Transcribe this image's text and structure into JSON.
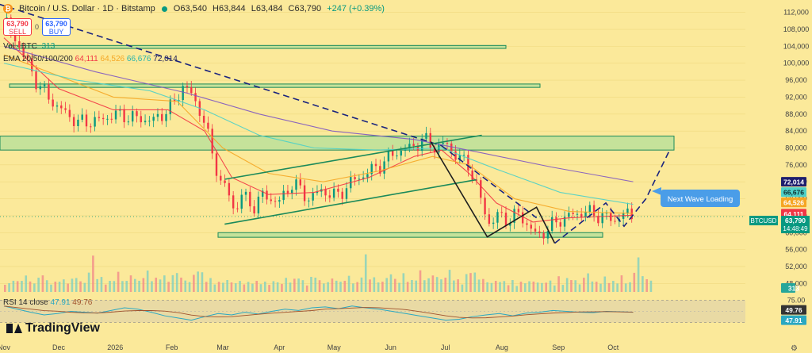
{
  "header": {
    "logo_glyph": "₿",
    "title": "Bitcoin / U.S. Dollar · 1D · Bitstamp",
    "status_dot_color": "#089981",
    "open": "O63,540",
    "high": "H63,844",
    "low": "L63,484",
    "close": "C63,790",
    "change": "+247 (+0.39%)"
  },
  "trade": {
    "sell_price": "63,790",
    "sell_label": "SELL",
    "buy_price": "63,790",
    "buy_label": "BUY",
    "spread": "0"
  },
  "indicators": {
    "vol_label": "Vol · BTC",
    "vol_value": "313",
    "ema_label": "EMA 20/50/100/200",
    "ema20": "64,111",
    "ema50": "64,526",
    "ema100": "66,676",
    "ema200": "72,014",
    "rsi_label": "RSI 14 close",
    "rsi_value": "47.91",
    "rsi_ma": "49.76"
  },
  "annotation": {
    "text": "Next Wave Loading"
  },
  "brand": "TradingView",
  "colors": {
    "background": "#fbe99a",
    "up": "#089981",
    "down": "#f23645",
    "ema20": "#f23645",
    "ema50": "#f5a623",
    "ema100": "#4dd0c8",
    "ema200": "#7e57c2",
    "zone_fill": "#b8e09a",
    "zone_stroke": "#1b8a5a",
    "projection": "#1a237e",
    "callout": "#4a9de8"
  },
  "chart_data": {
    "type": "candlestick",
    "symbol": "BTCUSD",
    "last_price": "63,790",
    "countdown": "14:48:49",
    "y_axis_ticks": [
      "112,000",
      "108,000",
      "104,000",
      "100,000",
      "96,000",
      "92,000",
      "88,000",
      "84,000",
      "80,000",
      "76,000",
      "72,000",
      "68,000",
      "64,000",
      "60,000",
      "56,000",
      "52,000",
      "48,000"
    ],
    "ylim": [
      46000,
      114000
    ],
    "x_axis_ticks": [
      "Nov",
      "Dec",
      "2026",
      "Feb",
      "Mar",
      "Apr",
      "May",
      "Jun",
      "Jul",
      "Aug",
      "Sep",
      "Oct"
    ],
    "price_labels": {
      "ema200": "72,014",
      "ema100": "66,676",
      "ema50": "64,526",
      "ema20": "64,111",
      "symbol": "BTCUSD",
      "price": "63,790",
      "countdown": "14:48:49"
    },
    "price_path": [
      [
        0,
        110000
      ],
      [
        8,
        104000
      ],
      [
        18,
        95000
      ],
      [
        28,
        90000
      ],
      [
        40,
        86000
      ],
      [
        52,
        86500
      ],
      [
        60,
        88000
      ],
      [
        72,
        87000
      ],
      [
        82,
        86500
      ],
      [
        92,
        90000
      ],
      [
        98,
        95000
      ],
      [
        103,
        92000
      ],
      [
        108,
        88000
      ],
      [
        113,
        80000
      ],
      [
        118,
        72000
      ],
      [
        122,
        70000
      ],
      [
        126,
        65000
      ],
      [
        130,
        69000
      ],
      [
        136,
        66000
      ],
      [
        142,
        69000
      ],
      [
        150,
        67000
      ],
      [
        158,
        72000
      ],
      [
        166,
        68000
      ],
      [
        174,
        70000
      ],
      [
        182,
        68500
      ],
      [
        190,
        72000
      ],
      [
        198,
        74000
      ],
      [
        206,
        76000
      ],
      [
        214,
        79000
      ],
      [
        222,
        80000
      ],
      [
        230,
        82000
      ],
      [
        236,
        80000
      ],
      [
        242,
        81000
      ],
      [
        248,
        78000
      ],
      [
        254,
        76000
      ],
      [
        258,
        72000
      ],
      [
        262,
        66000
      ],
      [
        266,
        62000
      ],
      [
        270,
        64000
      ],
      [
        276,
        63000
      ],
      [
        282,
        64500
      ],
      [
        288,
        61000
      ],
      [
        292,
        59000
      ],
      [
        298,
        61000
      ],
      [
        304,
        63000
      ],
      [
        310,
        64000
      ],
      [
        318,
        65000
      ],
      [
        326,
        64000
      ],
      [
        334,
        63000
      ],
      [
        340,
        64500
      ],
      [
        345,
        63790
      ]
    ],
    "ema_series": {
      "ema20": [
        [
          0,
          106000
        ],
        [
          30,
          94000
        ],
        [
          60,
          89000
        ],
        [
          90,
          89000
        ],
        [
          110,
          84000
        ],
        [
          125,
          73000
        ],
        [
          145,
          69000
        ],
        [
          170,
          69500
        ],
        [
          200,
          73000
        ],
        [
          225,
          78000
        ],
        [
          240,
          79500
        ],
        [
          255,
          74000
        ],
        [
          270,
          67000
        ],
        [
          290,
          62500
        ],
        [
          310,
          63500
        ],
        [
          345,
          64111
        ]
      ],
      "ema50": [
        [
          0,
          102000
        ],
        [
          30,
          97000
        ],
        [
          60,
          92000
        ],
        [
          95,
          91000
        ],
        [
          120,
          80000
        ],
        [
          145,
          74000
        ],
        [
          175,
          72000
        ],
        [
          205,
          74500
        ],
        [
          235,
          78000
        ],
        [
          255,
          76000
        ],
        [
          280,
          68000
        ],
        [
          310,
          65000
        ],
        [
          345,
          64526
        ]
      ],
      "ema100": [
        [
          0,
          100000
        ],
        [
          40,
          96000
        ],
        [
          80,
          93500
        ],
        [
          110,
          89000
        ],
        [
          140,
          83000
        ],
        [
          170,
          80000
        ],
        [
          205,
          79500
        ],
        [
          240,
          80000
        ],
        [
          270,
          75000
        ],
        [
          305,
          69500
        ],
        [
          345,
          66676
        ]
      ],
      "ema200": [
        [
          0,
          104000
        ],
        [
          50,
          98000
        ],
        [
          100,
          93000
        ],
        [
          140,
          88000
        ],
        [
          180,
          84000
        ],
        [
          225,
          82000
        ],
        [
          260,
          79000
        ],
        [
          300,
          75500
        ],
        [
          345,
          72014
        ]
      ]
    },
    "volume": {
      "label_value": "313",
      "bars": [
        30,
        22,
        40,
        28,
        35,
        45,
        30,
        25,
        38,
        55,
        30,
        28,
        26,
        40,
        32,
        28,
        35,
        42,
        30,
        25,
        60,
        95,
        45,
        38,
        30,
        28,
        40,
        52,
        35,
        30,
        48,
        38,
        30,
        45,
        55,
        40,
        36,
        50,
        42,
        35,
        44,
        58,
        40,
        32,
        30,
        45,
        70,
        50,
        40,
        35,
        28,
        26,
        30,
        32,
        28,
        25,
        30,
        24,
        26,
        30,
        28,
        32,
        26,
        25,
        28
      ]
    },
    "rsi": {
      "ticks": [
        "75.00",
        "25.00"
      ],
      "value": "47.91",
      "ma": "49.76",
      "values": [
        62,
        55,
        48,
        42,
        45,
        50,
        48,
        46,
        52,
        58,
        55,
        48,
        40,
        35,
        30,
        38,
        45,
        42,
        48,
        44,
        50,
        55,
        52,
        58,
        60,
        56,
        62,
        58,
        55,
        50,
        45,
        40,
        35,
        30,
        32,
        38,
        42,
        45,
        40,
        46,
        48,
        52,
        50,
        48,
        47,
        50,
        49,
        47.91
      ]
    },
    "zones": [
      {
        "name": "zone-104k",
        "low": 103500,
        "high": 104200
      },
      {
        "name": "zone-94k",
        "low": 94300,
        "high": 95100
      },
      {
        "name": "zone-80k",
        "low": 79500,
        "high": 82800
      },
      {
        "name": "zone-60k",
        "low": 58900,
        "high": 60000
      }
    ]
  }
}
